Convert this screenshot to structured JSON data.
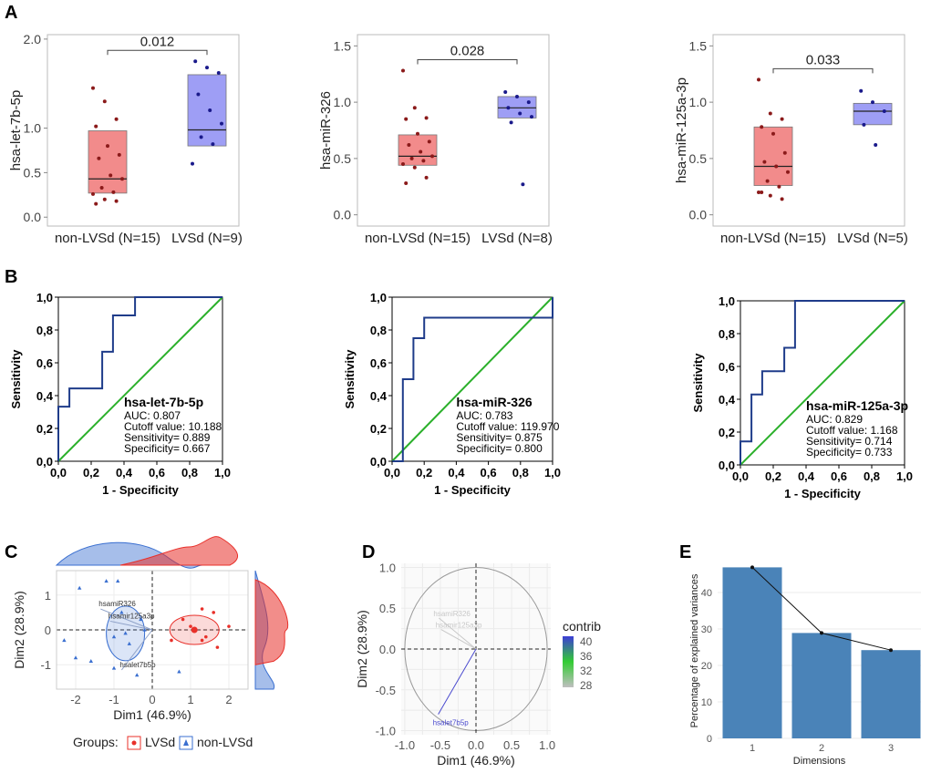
{
  "panels": {
    "A": "A",
    "B": "B",
    "C": "C",
    "D": "D",
    "E": "E"
  },
  "chart_data": [
    {
      "id": "A1",
      "type": "box",
      "ylabel": "hsa-let-7b-5p",
      "categories": [
        "non-LVSd (N=15)",
        "LVSd (N=9)"
      ],
      "ylim": [
        -0.1,
        2.05
      ],
      "yticks": [
        "0.0",
        "0.5",
        "1.0",
        "2.0"
      ],
      "ytick_values": [
        0,
        0.5,
        1.0,
        2.0
      ],
      "pvalue": "0.012",
      "groups": [
        {
          "name": "non-LVSd",
          "color": "#f28b8b",
          "dot": "#8b1a1a",
          "q1": 0.27,
          "median": 0.43,
          "q3": 0.97,
          "points": [
            1.45,
            1.3,
            1.1,
            1.02,
            0.8,
            0.7,
            0.66,
            0.47,
            0.43,
            0.33,
            0.28,
            0.26,
            0.2,
            0.18,
            0.15
          ]
        },
        {
          "name": "LVSd",
          "color": "#9e9ef5",
          "dot": "#1a1a8b",
          "q1": 0.8,
          "median": 0.98,
          "q3": 1.6,
          "points": [
            1.75,
            1.68,
            1.62,
            1.38,
            1.2,
            1.05,
            0.9,
            0.82,
            0.6
          ]
        }
      ]
    },
    {
      "id": "A2",
      "type": "box",
      "ylabel": "hsa-miR-326",
      "categories": [
        "non-LVSd (N=15)",
        "LVSd (N=8)"
      ],
      "ylim": [
        -0.1,
        1.6
      ],
      "yticks": [
        "0.0",
        "0.5",
        "1.0",
        "1.5"
      ],
      "ytick_values": [
        0,
        0.5,
        1.0,
        1.5
      ],
      "pvalue": "0.028",
      "groups": [
        {
          "name": "non-LVSd",
          "color": "#f28b8b",
          "dot": "#8b1a1a",
          "q1": 0.44,
          "median": 0.52,
          "q3": 0.71,
          "points": [
            1.28,
            0.95,
            0.86,
            0.85,
            0.72,
            0.65,
            0.62,
            0.56,
            0.52,
            0.5,
            0.48,
            0.45,
            0.42,
            0.33,
            0.28
          ]
        },
        {
          "name": "LVSd",
          "color": "#9e9ef5",
          "dot": "#1a1a8b",
          "q1": 0.86,
          "median": 0.95,
          "q3": 1.05,
          "points": [
            1.09,
            1.05,
            1.0,
            0.95,
            0.9,
            0.87,
            0.82,
            0.27
          ]
        }
      ]
    },
    {
      "id": "A3",
      "type": "box",
      "ylabel": "hsa-miR-125a-3p",
      "categories": [
        "non-LVSd (N=15)",
        "LVSd (N=5)"
      ],
      "ylim": [
        -0.1,
        1.6
      ],
      "yticks": [
        "0.0",
        "0.5",
        "1.0",
        "1.5"
      ],
      "ytick_values": [
        0,
        0.5,
        1.0,
        1.5
      ],
      "pvalue": "0.033",
      "groups": [
        {
          "name": "non-LVSd",
          "color": "#f28b8b",
          "dot": "#8b1a1a",
          "q1": 0.26,
          "median": 0.43,
          "q3": 0.78,
          "points": [
            1.2,
            0.9,
            0.85,
            0.78,
            0.72,
            0.55,
            0.47,
            0.43,
            0.38,
            0.3,
            0.25,
            0.2,
            0.17,
            0.14,
            0.2
          ]
        },
        {
          "name": "LVSd",
          "color": "#9e9ef5",
          "dot": "#1a1a8b",
          "q1": 0.8,
          "median": 0.92,
          "q3": 0.99,
          "points": [
            1.1,
            1.0,
            0.92,
            0.8,
            0.62
          ]
        }
      ]
    },
    {
      "id": "B1",
      "type": "roc",
      "xlabel": "1 - Specificity",
      "ylabel": "Sensitivity",
      "ticks": [
        "0,0",
        "0,2",
        "0,4",
        "0,6",
        "0,8",
        "1,0"
      ],
      "tick_values": [
        0,
        0.2,
        0.4,
        0.6,
        0.8,
        1.0
      ],
      "title": "hsa-let-7b-5p",
      "stats": [
        "AUC: 0.807",
        "Cutoff value: 10.188",
        "Sensitivity= 0.889",
        "Specificity= 0.667"
      ],
      "curve_x": [
        0,
        0,
        0.067,
        0.067,
        0.267,
        0.267,
        0.333,
        0.333,
        0.467,
        0.467,
        1.0
      ],
      "curve_y": [
        0,
        0.333,
        0.333,
        0.444,
        0.444,
        0.667,
        0.667,
        0.889,
        0.889,
        1.0,
        1.0
      ]
    },
    {
      "id": "B2",
      "type": "roc",
      "xlabel": "1 - Specificity",
      "ylabel": "Sensitivity",
      "ticks": [
        "0,0",
        "0,2",
        "0,4",
        "0,6",
        "0,8",
        "1,0"
      ],
      "tick_values": [
        0,
        0.2,
        0.4,
        0.6,
        0.8,
        1.0
      ],
      "title": "hsa-miR-326",
      "stats": [
        "AUC: 0.783",
        "Cutoff value: 119.970",
        "Sensitivity= 0.875",
        "Specificity= 0.800"
      ],
      "curve_x": [
        0,
        0.067,
        0.067,
        0.133,
        0.133,
        0.2,
        0.2,
        1.0,
        1.0
      ],
      "curve_y": [
        0,
        0,
        0.5,
        0.5,
        0.75,
        0.75,
        0.875,
        0.875,
        1.0
      ]
    },
    {
      "id": "B3",
      "type": "roc",
      "xlabel": "1 - Specificity",
      "ylabel": "Sensitivity",
      "ticks": [
        "0,0",
        "0,2",
        "0,4",
        "0,6",
        "0,8",
        "1,0"
      ],
      "tick_values": [
        0,
        0.2,
        0.4,
        0.6,
        0.8,
        1.0
      ],
      "title": "hsa-miR-125a-3p",
      "stats": [
        "AUC: 0.829",
        "Cutoff value: 1.168",
        "Sensitivity= 0.714",
        "Specificity= 0.733"
      ],
      "curve_x": [
        0,
        0,
        0.067,
        0.067,
        0.133,
        0.133,
        0.267,
        0.267,
        0.333,
        0.333,
        1.0
      ],
      "curve_y": [
        0,
        0.143,
        0.143,
        0.429,
        0.429,
        0.571,
        0.571,
        0.714,
        0.714,
        1.0,
        1.0
      ]
    },
    {
      "id": "C",
      "type": "scatter",
      "xlabel": "Dim1 (46.9%)",
      "ylabel": "Dim2 (28.9%)",
      "xticks": [
        "-2",
        "-1",
        "0",
        "1",
        "2"
      ],
      "xtick_values": [
        -2,
        -1,
        0,
        1,
        2
      ],
      "yticks": [
        "1",
        "0",
        "-1"
      ],
      "ytick_values": [
        1,
        0,
        -1
      ],
      "xlim": [
        -2.5,
        2.5
      ],
      "ylim": [
        -1.7,
        1.7
      ],
      "legend_title": "Groups:",
      "legend": [
        {
          "name": "LVSd",
          "color": "#e8302a"
        },
        {
          "name": "non-LVSd",
          "color": "#3a6fd0"
        }
      ],
      "arrows": [
        {
          "label": "hsamiR326",
          "x": -1.35,
          "y": 0.6
        },
        {
          "label": "hsamir125a3p",
          "x": -1.1,
          "y": 0.25
        },
        {
          "label": "hsalet7b5p",
          "x": -0.8,
          "y": -1.15
        }
      ],
      "lvsd_points": [
        [
          1.3,
          0.6
        ],
        [
          0.8,
          0.3
        ],
        [
          1.6,
          0.5
        ],
        [
          2.0,
          0.1
        ],
        [
          1.4,
          -0.2
        ],
        [
          0.5,
          -0.3
        ],
        [
          1.7,
          -0.5
        ],
        [
          1.0,
          0.1
        ],
        [
          1.3,
          -0.3
        ]
      ],
      "nonlvsd_points": [
        [
          -1.2,
          1.4
        ],
        [
          -0.8,
          0.5
        ],
        [
          -0.3,
          0.3
        ],
        [
          -1.0,
          -0.2
        ],
        [
          -1.6,
          -0.9
        ],
        [
          -0.6,
          -0.4
        ],
        [
          -2.0,
          -0.8
        ],
        [
          -1.9,
          1.2
        ],
        [
          -0.4,
          -1.3
        ],
        [
          -1.0,
          -1.1
        ],
        [
          -0.9,
          1.4
        ],
        [
          -2.3,
          -0.3
        ],
        [
          -0.2,
          0.0
        ],
        [
          0.7,
          -1.2
        ],
        [
          -0.7,
          -0.1
        ]
      ],
      "lvsd_center": [
        1.1,
        0.0
      ],
      "nonlvsd_center": [
        -0.7,
        -0.1
      ]
    },
    {
      "id": "D",
      "type": "variables",
      "xlabel": "Dim1 (46.9%)",
      "ylabel": "Dim2 (28.9%)",
      "xticks": [
        "-1.0",
        "-0.5",
        "0.0",
        "0.5",
        "1.0"
      ],
      "xtick_values": [
        -1,
        -0.5,
        0,
        0.5,
        1.0
      ],
      "yticks": [
        "1.0",
        "0.5",
        "0.0",
        "-0.5",
        "-1.0"
      ],
      "ytick_values": [
        1.0,
        0.5,
        0,
        -0.5,
        -1.0
      ],
      "legend_title": "contrib",
      "legend_values": [
        "40",
        "36",
        "32",
        "28"
      ],
      "arrows": [
        {
          "label": "hsamiR326",
          "x": -0.52,
          "y": 0.38,
          "color": "#c8c8c8"
        },
        {
          "label": "hsamir125a3p",
          "x": -0.49,
          "y": 0.24,
          "color": "#c8c8c8"
        },
        {
          "label": "hsalet7b5p",
          "x": -0.53,
          "y": -0.8,
          "color": "#4b4bcf"
        }
      ]
    },
    {
      "id": "E",
      "type": "bar",
      "xlabel": "Dimensions",
      "ylabel": "Percentage of explained variances",
      "categories": [
        "1",
        "2",
        "3"
      ],
      "values": [
        46.9,
        28.9,
        24.2
      ],
      "yticks": [
        "0",
        "10",
        "20",
        "30",
        "40"
      ],
      "ytick_values": [
        0,
        10,
        20,
        30,
        40
      ],
      "ylim": [
        0,
        48
      ],
      "color": "#4a83b8"
    }
  ]
}
